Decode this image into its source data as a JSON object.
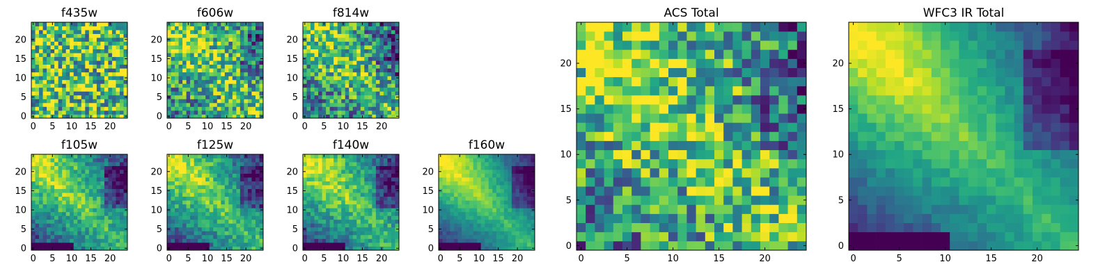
{
  "chart_data": [
    {
      "type": "heatmap",
      "title": "f435w",
      "grid_size": 25,
      "xlim": [
        -0.5,
        24.5
      ],
      "ylim": [
        -0.5,
        24.5
      ],
      "x_ticks": [
        0,
        5,
        10,
        15,
        20
      ],
      "y_ticks": [
        0,
        5,
        10,
        15,
        20
      ],
      "colormap": "viridis",
      "pattern": "noise",
      "brightness": 0.15
    },
    {
      "type": "heatmap",
      "title": "f606w",
      "grid_size": 25,
      "xlim": [
        -0.5,
        24.5
      ],
      "ylim": [
        -0.5,
        24.5
      ],
      "x_ticks": [
        0,
        5,
        10,
        15,
        20
      ],
      "y_ticks": [
        0,
        5,
        10,
        15,
        20
      ],
      "colormap": "viridis",
      "pattern": "noisy-diagonal",
      "brightness": 0.05
    },
    {
      "type": "heatmap",
      "title": "f814w",
      "grid_size": 25,
      "xlim": [
        -0.5,
        24.5
      ],
      "ylim": [
        -0.5,
        24.5
      ],
      "x_ticks": [
        0,
        5,
        10,
        15,
        20
      ],
      "y_ticks": [
        0,
        5,
        10,
        15,
        20
      ],
      "colormap": "viridis",
      "pattern": "noisy-diagonal",
      "brightness": 0.0
    },
    {
      "type": "heatmap",
      "title": "f105w",
      "grid_size": 25,
      "xlim": [
        -0.5,
        24.5
      ],
      "ylim": [
        -0.5,
        24.5
      ],
      "x_ticks": [
        0,
        5,
        10,
        15,
        20
      ],
      "y_ticks": [
        0,
        5,
        10,
        15,
        20
      ],
      "colormap": "viridis",
      "pattern": "diagonal",
      "brightness": 0.0
    },
    {
      "type": "heatmap",
      "title": "f125w",
      "grid_size": 25,
      "xlim": [
        -0.5,
        24.5
      ],
      "ylim": [
        -0.5,
        24.5
      ],
      "x_ticks": [
        0,
        5,
        10,
        15,
        20
      ],
      "y_ticks": [
        0,
        5,
        10,
        15,
        20
      ],
      "colormap": "viridis",
      "pattern": "diagonal",
      "brightness": 0.0
    },
    {
      "type": "heatmap",
      "title": "f140w",
      "grid_size": 25,
      "xlim": [
        -0.5,
        24.5
      ],
      "ylim": [
        -0.5,
        24.5
      ],
      "x_ticks": [
        0,
        5,
        10,
        15,
        20
      ],
      "y_ticks": [
        0,
        5,
        10,
        15,
        20
      ],
      "colormap": "viridis",
      "pattern": "diagonal",
      "brightness": 0.0
    },
    {
      "type": "heatmap",
      "title": "f160w",
      "grid_size": 25,
      "xlim": [
        -0.5,
        24.5
      ],
      "ylim": [
        -0.5,
        24.5
      ],
      "x_ticks": [
        0,
        5,
        10,
        15,
        20
      ],
      "y_ticks": [
        0,
        5,
        10,
        15,
        20
      ],
      "colormap": "viridis",
      "pattern": "smooth-diagonal",
      "brightness": 0.0
    },
    {
      "type": "heatmap",
      "title": "ACS Total",
      "grid_size": 25,
      "xlim": [
        -0.5,
        24.5
      ],
      "ylim": [
        -0.5,
        24.5
      ],
      "x_ticks": [
        0,
        5,
        10,
        15,
        20
      ],
      "y_ticks": [
        0,
        5,
        10,
        15,
        20
      ],
      "colormap": "viridis",
      "pattern": "noisy-diagonal",
      "brightness": 0.05
    },
    {
      "type": "heatmap",
      "title": "WFC3 IR Total",
      "grid_size": 25,
      "xlim": [
        -0.5,
        24.5
      ],
      "ylim": [
        -0.5,
        24.5
      ],
      "x_ticks": [
        0,
        5,
        10,
        15,
        20
      ],
      "y_ticks": [
        0,
        5,
        10,
        15,
        20
      ],
      "colormap": "viridis",
      "pattern": "smooth-diagonal",
      "brightness": 0.0
    }
  ]
}
